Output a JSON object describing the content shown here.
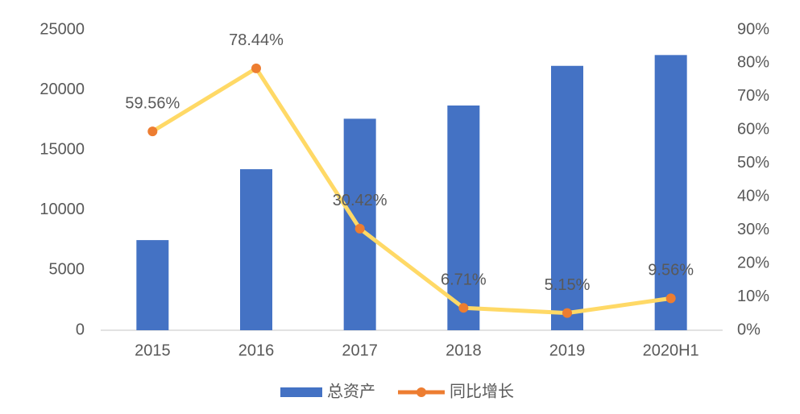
{
  "chart_data": {
    "type": "combo",
    "categories": [
      "2015",
      "2016",
      "2017",
      "2018",
      "2019",
      "2020H1"
    ],
    "series": [
      {
        "name": "总资产",
        "type": "bar",
        "color": "#4472c4",
        "values": [
          7500,
          13400,
          17600,
          18700,
          22000,
          22900
        ]
      },
      {
        "name": "同比增长",
        "type": "line",
        "axis": "y2",
        "color": "#ffd966",
        "marker_color": "#ed7d31",
        "values": [
          59.56,
          78.44,
          30.42,
          6.71,
          5.15,
          9.56
        ],
        "value_labels": [
          "59.56%",
          "78.44%",
          "30.42%",
          "6.71%",
          "5.15%",
          "9.56%"
        ]
      }
    ],
    "ylim": [
      0,
      25000
    ],
    "yticks": [
      0,
      5000,
      10000,
      15000,
      20000,
      25000
    ],
    "y2lim": [
      0,
      90
    ],
    "y2ticks": [
      {
        "value": 0,
        "label": "0%"
      },
      {
        "value": 10,
        "label": "10%"
      },
      {
        "value": 20,
        "label": "20%"
      },
      {
        "value": 30,
        "label": "30%"
      },
      {
        "value": 40,
        "label": "40%"
      },
      {
        "value": 50,
        "label": "50%"
      },
      {
        "value": 60,
        "label": "60%"
      },
      {
        "value": 70,
        "label": "70%"
      },
      {
        "value": 80,
        "label": "80%"
      },
      {
        "value": 90,
        "label": "90%"
      }
    ],
    "grid": false,
    "legend": "bottom"
  }
}
